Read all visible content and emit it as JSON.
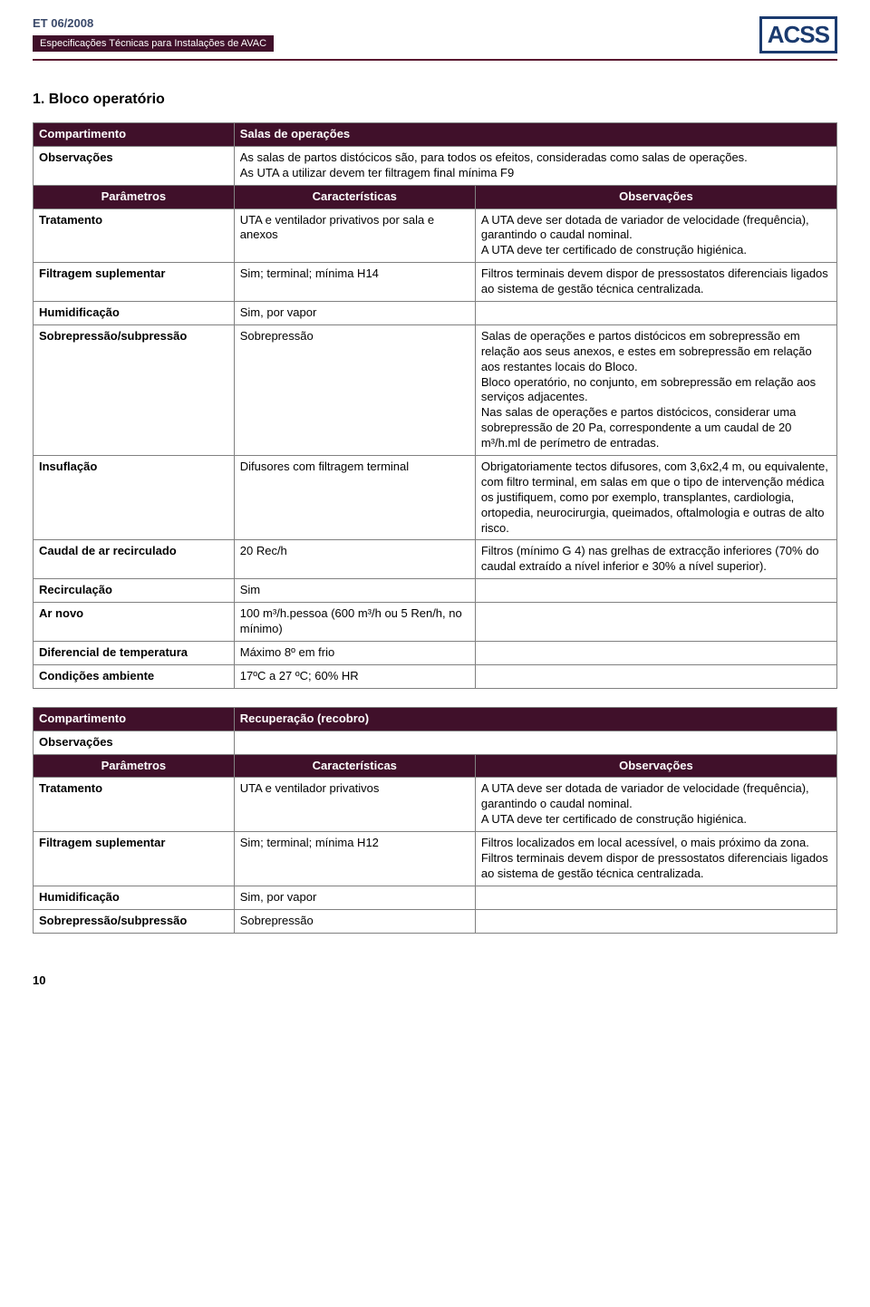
{
  "header": {
    "doc_code": "ET 06/2008",
    "subtitle": "Especificações Técnicas para Instalações de AVAC",
    "logo": "ACSS"
  },
  "section_heading": "1. Bloco operatório",
  "table1": {
    "compart_label": "Compartimento",
    "compart_value": "Salas de operações",
    "obs_label": "Observações",
    "obs_value": "As salas de partos distócicos são, para todos os efeitos, consideradas como salas de operações.\nAs UTA a utilizar devem ter filtragem final mínima F9",
    "hdr_param": "Parâmetros",
    "hdr_char": "Características",
    "hdr_obs": "Observações",
    "rows": [
      {
        "p": "Tratamento",
        "c": "UTA e ventilador privativos por sala e anexos",
        "o": "A UTA deve ser dotada de variador de velocidade (frequência), garantindo o caudal nominal.\nA UTA deve ter certificado de construção higiénica."
      },
      {
        "p": "Filtragem suplementar",
        "c": "Sim; terminal; mínima H14",
        "o": "Filtros terminais devem dispor de pressostatos diferenciais ligados ao sistema de gestão técnica centralizada."
      },
      {
        "p": "Humidificação",
        "c": "Sim, por vapor",
        "o": ""
      },
      {
        "p": "Sobrepressão/subpressão",
        "c": "Sobrepressão",
        "o": "Salas de operações e partos distócicos em sobrepressão em relação aos seus anexos, e estes em sobrepressão em relação aos restantes locais do Bloco.\nBloco operatório, no conjunto, em sobrepressão em relação aos serviços adjacentes.\nNas salas de operações e partos distócicos, considerar uma sobrepressão de 20 Pa, correspondente a um caudal de 20 m³/h.ml de perímetro de entradas."
      },
      {
        "p": "Insuflação",
        "c": "Difusores com filtragem terminal",
        "o": "Obrigatoriamente tectos difusores, com 3,6x2,4 m, ou equivalente, com filtro terminal, em salas em que o tipo de intervenção médica os justifiquem, como por exemplo, transplantes, cardiologia, ortopedia, neurocirurgia, queimados, oftalmologia e outras de alto risco."
      },
      {
        "p": "Caudal de ar recirculado",
        "c": "20 Rec/h",
        "o": "Filtros (mínimo G 4) nas grelhas de extracção inferiores (70% do caudal extraído a nível inferior e 30% a nível superior)."
      },
      {
        "p": "Recirculação",
        "c": "Sim",
        "o": ""
      },
      {
        "p": "Ar novo",
        "c": "100 m³/h.pessoa (600 m³/h ou 5 Ren/h, no mínimo)",
        "o": ""
      },
      {
        "p": "Diferencial de temperatura",
        "c": "Máximo 8º em frio",
        "o": ""
      },
      {
        "p": "Condições ambiente",
        "c": "17ºC a 27 ºC; 60% HR",
        "o": ""
      }
    ]
  },
  "table2": {
    "compart_label": "Compartimento",
    "compart_value": "Recuperação (recobro)",
    "obs_label": "Observações",
    "obs_value": "",
    "hdr_param": "Parâmetros",
    "hdr_char": "Características",
    "hdr_obs": "Observações",
    "rows": [
      {
        "p": "Tratamento",
        "c": "UTA e ventilador privativos",
        "o": "A UTA deve ser dotada de variador de velocidade (frequência), garantindo o caudal nominal.\nA UTA deve ter certificado de construção higiénica."
      },
      {
        "p": "Filtragem suplementar",
        "c": "Sim; terminal; mínima H12",
        "o": "Filtros localizados em local acessível, o mais próximo da zona.\nFiltros terminais devem dispor de pressostatos diferenciais ligados ao sistema de gestão técnica centralizada."
      },
      {
        "p": "Humidificação",
        "c": "Sim, por vapor",
        "o": ""
      },
      {
        "p": "Sobrepressão/subpressão",
        "c": "Sobrepressão",
        "o": ""
      }
    ]
  },
  "page_number": "10"
}
